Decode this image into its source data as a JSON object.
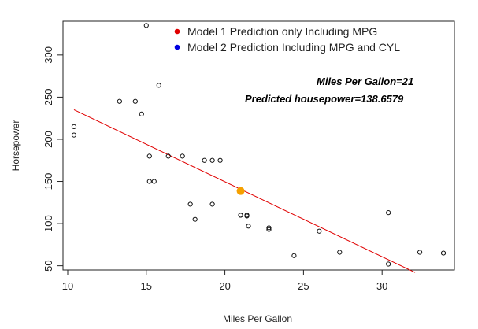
{
  "chart_data": {
    "type": "scatter",
    "title": "",
    "xlabel": "Miles Per Gallon",
    "ylabel": "Horsepower",
    "xlim": [
      9.7,
      34.6
    ],
    "ylim": [
      45,
      340
    ],
    "x_ticks": [
      10,
      15,
      20,
      25,
      30
    ],
    "y_ticks": [
      50,
      100,
      150,
      200,
      250,
      300
    ],
    "grid": false,
    "legend": {
      "placement": "top-center",
      "entries": [
        {
          "label": "Model 1 Prediction only Including MPG",
          "color": "#e00000"
        },
        {
          "label": "Model 2 Prediction Including MPG and CYL",
          "color": "#0000e0"
        }
      ]
    },
    "annotations": [
      "Miles Per Gallon=21",
      "Predicted housepower=138.6579"
    ],
    "points": {
      "x": [
        21.0,
        21.0,
        22.8,
        21.4,
        18.7,
        18.1,
        14.3,
        24.4,
        22.8,
        19.2,
        17.8,
        16.4,
        17.3,
        15.2,
        10.4,
        10.4,
        14.7,
        32.4,
        30.4,
        33.9,
        21.5,
        15.5,
        15.2,
        13.3,
        19.2,
        27.3,
        26.0,
        30.4,
        15.8,
        19.7,
        15.0,
        21.4
      ],
      "y": [
        110,
        110,
        93,
        110,
        175,
        105,
        245,
        62,
        95,
        123,
        123,
        180,
        180,
        180,
        205,
        215,
        230,
        66,
        52,
        65,
        97,
        150,
        150,
        245,
        175,
        66,
        91,
        113,
        264,
        175,
        335,
        109
      ]
    },
    "regression_line": {
      "color": "#e00000",
      "x": [
        10.4,
        32.1
      ],
      "y": [
        235,
        42
      ]
    },
    "highlight_point": {
      "x": 21,
      "y": 138.6579,
      "color": "#f5a000"
    }
  }
}
